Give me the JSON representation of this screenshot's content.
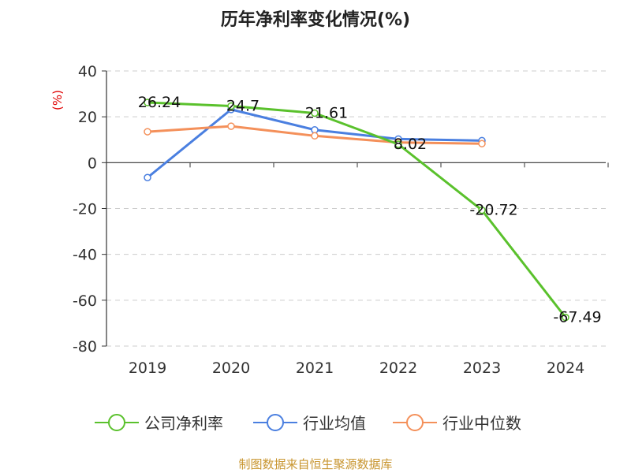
{
  "chart_data": {
    "type": "line",
    "title": "历年净利率变化情况(%)",
    "ylabel": "(%)",
    "categories": [
      "2019",
      "2020",
      "2021",
      "2022",
      "2023",
      "2024"
    ],
    "ylim": [
      -80,
      40
    ],
    "yticks": [
      40,
      20,
      0,
      -20,
      -40,
      -60,
      -80
    ],
    "grid": true,
    "legend_position": "bottom",
    "series": [
      {
        "name": "公司净利率",
        "color": "#5ac12c",
        "values": [
          26.24,
          24.7,
          21.61,
          8.02,
          -20.72,
          -67.49
        ],
        "labels": [
          "26.24",
          "24.7",
          "21.61",
          "8.02",
          "-20.72",
          "-67.49"
        ]
      },
      {
        "name": "行业均值",
        "color": "#4a7fe0",
        "values": [
          -6.5,
          23.2,
          14.3,
          10.3,
          9.6,
          null
        ]
      },
      {
        "name": "行业中位数",
        "color": "#f4905a",
        "values": [
          13.5,
          15.9,
          11.7,
          8.8,
          8.3,
          null
        ]
      }
    ]
  },
  "footer": {
    "source": "制图数据来自恒生聚源数据库"
  }
}
